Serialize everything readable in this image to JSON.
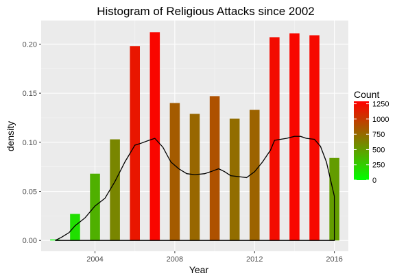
{
  "chart_data": {
    "type": "bar",
    "title": "Histogram of Religious Attacks since 2002",
    "xlabel": "Year",
    "ylabel": "density",
    "xlim": [
      2001.3,
      2016.7
    ],
    "ylim": [
      -0.011,
      0.224
    ],
    "x_ticks": [
      2004,
      2008,
      2012,
      2016
    ],
    "y_ticks": [
      0.0,
      0.05,
      0.1,
      0.15,
      0.2
    ],
    "y_tick_labels": [
      "0.00",
      "0.05",
      "0.10",
      "0.15",
      "0.20"
    ],
    "grid": true,
    "bars": [
      {
        "year": 2002,
        "density": 0.001,
        "count": 5
      },
      {
        "year": 2003,
        "density": 0.027,
        "count": 160
      },
      {
        "year": 2004,
        "density": 0.068,
        "count": 400
      },
      {
        "year": 2005,
        "density": 0.103,
        "count": 610
      },
      {
        "year": 2006,
        "density": 0.198,
        "count": 1180
      },
      {
        "year": 2007,
        "density": 0.212,
        "count": 1260
      },
      {
        "year": 2008,
        "density": 0.14,
        "count": 830
      },
      {
        "year": 2009,
        "density": 0.129,
        "count": 770
      },
      {
        "year": 2010,
        "density": 0.147,
        "count": 880
      },
      {
        "year": 2011,
        "density": 0.124,
        "count": 740
      },
      {
        "year": 2012,
        "density": 0.133,
        "count": 790
      },
      {
        "year": 2013,
        "density": 0.207,
        "count": 1230
      },
      {
        "year": 2014,
        "density": 0.211,
        "count": 1255
      },
      {
        "year": 2015,
        "density": 0.209,
        "count": 1245
      },
      {
        "year": 2016,
        "density": 0.084,
        "count": 500
      }
    ],
    "density_curve": {
      "x": [
        2002.0,
        2002.3,
        2002.7,
        2003.0,
        2003.5,
        2004.0,
        2004.5,
        2005.0,
        2005.5,
        2006.0,
        2006.3,
        2006.7,
        2007.0,
        2007.4,
        2007.8,
        2008.2,
        2008.6,
        2009.0,
        2009.5,
        2009.8,
        2010.2,
        2010.5,
        2010.8,
        2011.2,
        2011.6,
        2012.0,
        2012.4,
        2012.8,
        2013.0,
        2013.3,
        2013.6,
        2014.0,
        2014.3,
        2014.6,
        2015.0,
        2015.3,
        2015.6,
        2016.0
      ],
      "y": [
        0.0,
        0.003,
        0.008,
        0.015,
        0.023,
        0.035,
        0.043,
        0.06,
        0.08,
        0.097,
        0.099,
        0.102,
        0.104,
        0.095,
        0.08,
        0.073,
        0.068,
        0.067,
        0.068,
        0.07,
        0.073,
        0.07,
        0.066,
        0.065,
        0.064,
        0.07,
        0.08,
        0.092,
        0.102,
        0.103,
        0.104,
        0.106,
        0.106,
        0.104,
        0.103,
        0.096,
        0.08,
        0.045
      ]
    },
    "legend": {
      "title": "Count",
      "breaks": [
        0,
        250,
        500,
        750,
        1000,
        1250
      ],
      "labels": [
        "0",
        "250",
        "500",
        "750",
        "1000",
        "1250"
      ],
      "min": 0,
      "max": 1290,
      "low_color": "#00ff00",
      "high_color": "#ff0000",
      "placement": "right"
    },
    "colors": {
      "panel_background": "#ebebeb",
      "grid_major": "#ffffff",
      "curve": "#000000"
    }
  }
}
